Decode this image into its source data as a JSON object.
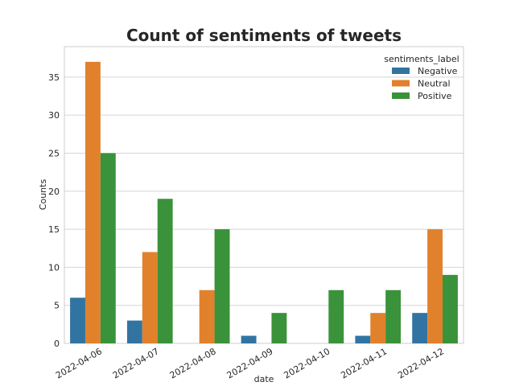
{
  "chart_data": {
    "type": "bar",
    "title": "Count of sentiments of tweets",
    "xlabel": "date",
    "ylabel": "Counts",
    "categories": [
      "2022-04-06",
      "2022-04-07",
      "2022-04-08",
      "2022-04-09",
      "2022-04-10",
      "2022-04-11",
      "2022-04-12"
    ],
    "series": [
      {
        "name": "Negative",
        "color": "#3274a1",
        "values": [
          6,
          3,
          0,
          1,
          0,
          1,
          4
        ]
      },
      {
        "name": "Neutral",
        "color": "#e1812c",
        "values": [
          37,
          12,
          7,
          0,
          0,
          4,
          15
        ]
      },
      {
        "name": "Positive",
        "color": "#3a923a",
        "values": [
          25,
          19,
          15,
          4,
          7,
          7,
          9
        ]
      }
    ],
    "ylim": [
      0,
      39
    ],
    "yticks": [
      "0",
      "5",
      "10",
      "15",
      "20",
      "25",
      "30",
      "35"
    ],
    "grid": true,
    "legend": {
      "title": "sentiments_label",
      "placement": "top-right"
    }
  }
}
